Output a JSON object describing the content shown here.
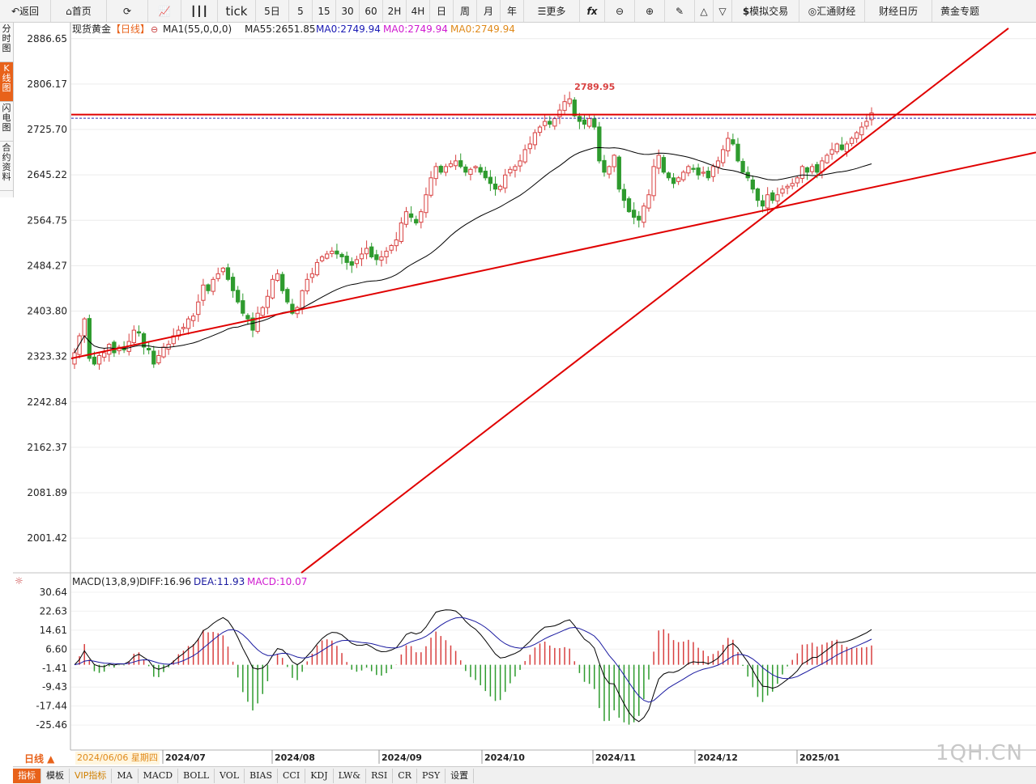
{
  "toolbar": {
    "back": "返回",
    "home": "首页",
    "tick": "tick",
    "periods": [
      "5日",
      "5",
      "15",
      "30",
      "60",
      "2H",
      "4H",
      "日",
      "周",
      "月",
      "年"
    ],
    "more": "更多",
    "sim_trade": "模拟交易",
    "huitong": "汇通财经",
    "calendar": "财经日历",
    "gold_topic": "黄金专题"
  },
  "side_tabs": [
    {
      "label": "分时图"
    },
    {
      "label": "K线图"
    },
    {
      "label": "闪电图"
    },
    {
      "label": "合约资料"
    }
  ],
  "legend": {
    "instrument": "现货黄金",
    "period": "【日线】",
    "ma1": "MA1(55,0,0,0)",
    "ma55": "MA55:2651.85",
    "ma0a": "MA0:2749.94",
    "ma0b": "MA0:2749.94",
    "ma0c": "MA0:2749.94"
  },
  "macd_legend": {
    "name": "MACD(13,8,9)",
    "diff": "DIFF:16.96",
    "dea": "DEA:11.93",
    "macd": "MACD:10.07"
  },
  "bottom": {
    "period_btn": "日线 ▲",
    "cursor_date": "2024/06/06 星期四",
    "tabs": [
      "指标",
      "模板",
      "VIP指标",
      "MA",
      "MACD",
      "BOLL",
      "VOL",
      "BIAS",
      "CCI",
      "KDJ",
      "LW&",
      "RSI",
      "CR",
      "PSY",
      "设置"
    ]
  },
  "watermark": "1QH.CN",
  "colors": {
    "up": "#d84040",
    "down": "#2e9b2e",
    "trendline": "#e00000",
    "ma55": "#000000",
    "dea": "#1a1aa0",
    "accent": "#e8621a"
  },
  "chart_data": [
    {
      "type": "candlestick",
      "title": "现货黄金 日线",
      "ylim": [
        1940,
        2915
      ],
      "y_ticks": [
        2886.65,
        2806.17,
        2725.7,
        2645.22,
        2564.75,
        2484.27,
        2403.8,
        2323.32,
        2242.84,
        2162.37,
        2081.89,
        2001.42
      ],
      "x_ticks": [
        "2024/07",
        "2024/08",
        "2024/09",
        "2024/10",
        "2024/11",
        "2024/12",
        "2025/01"
      ],
      "annotations": [
        {
          "text": "2789.95",
          "type": "high"
        }
      ],
      "horizontal_lines": [
        {
          "value": 2752,
          "color": "red"
        },
        {
          "value": 2749.94,
          "color": "blue-dashed"
        }
      ],
      "candles_close": [
        2330,
        2360,
        2390,
        2320,
        2310,
        2325,
        2330,
        2345,
        2330,
        2340,
        2335,
        2350,
        2370,
        2365,
        2340,
        2335,
        2310,
        2325,
        2340,
        2345,
        2360,
        2370,
        2375,
        2390,
        2395,
        2420,
        2450,
        2440,
        2460,
        2470,
        2480,
        2460,
        2440,
        2420,
        2400,
        2390,
        2370,
        2400,
        2410,
        2430,
        2460,
        2470,
        2440,
        2420,
        2400,
        2410,
        2440,
        2460,
        2470,
        2490,
        2500,
        2505,
        2510,
        2505,
        2500,
        2490,
        2485,
        2495,
        2505,
        2515,
        2500,
        2495,
        2500,
        2510,
        2520,
        2530,
        2560,
        2580,
        2570,
        2560,
        2580,
        2610,
        2640,
        2660,
        2650,
        2660,
        2665,
        2670,
        2660,
        2650,
        2655,
        2660,
        2650,
        2640,
        2630,
        2620,
        2625,
        2645,
        2655,
        2660,
        2670,
        2690,
        2700,
        2720,
        2730,
        2740,
        2735,
        2745,
        2760,
        2775,
        2780,
        2750,
        2740,
        2735,
        2745,
        2730,
        2670,
        2650,
        2660,
        2680,
        2620,
        2600,
        2580,
        2570,
        2565,
        2590,
        2610,
        2660,
        2680,
        2650,
        2640,
        2630,
        2640,
        2650,
        2660,
        2655,
        2645,
        2650,
        2640,
        2660,
        2670,
        2690,
        2710,
        2700,
        2670,
        2650,
        2640,
        2620,
        2600,
        2590,
        2610,
        2600,
        2610,
        2620,
        2625,
        2630,
        2640,
        2660,
        2650,
        2660,
        2650,
        2670,
        2680,
        2690,
        2700,
        2690,
        2700,
        2710,
        2720,
        2730,
        2740,
        2755
      ],
      "ma55": "MA1(55,0,0,0) moving average"
    },
    {
      "type": "macd",
      "ylim": [
        -36,
        32
      ],
      "y_ticks": [
        30.64,
        22.63,
        14.61,
        6.6,
        -1.41,
        -9.43,
        -17.44,
        -25.46
      ],
      "diff": 16.96,
      "dea": 11.93,
      "macd": 10.07
    }
  ]
}
